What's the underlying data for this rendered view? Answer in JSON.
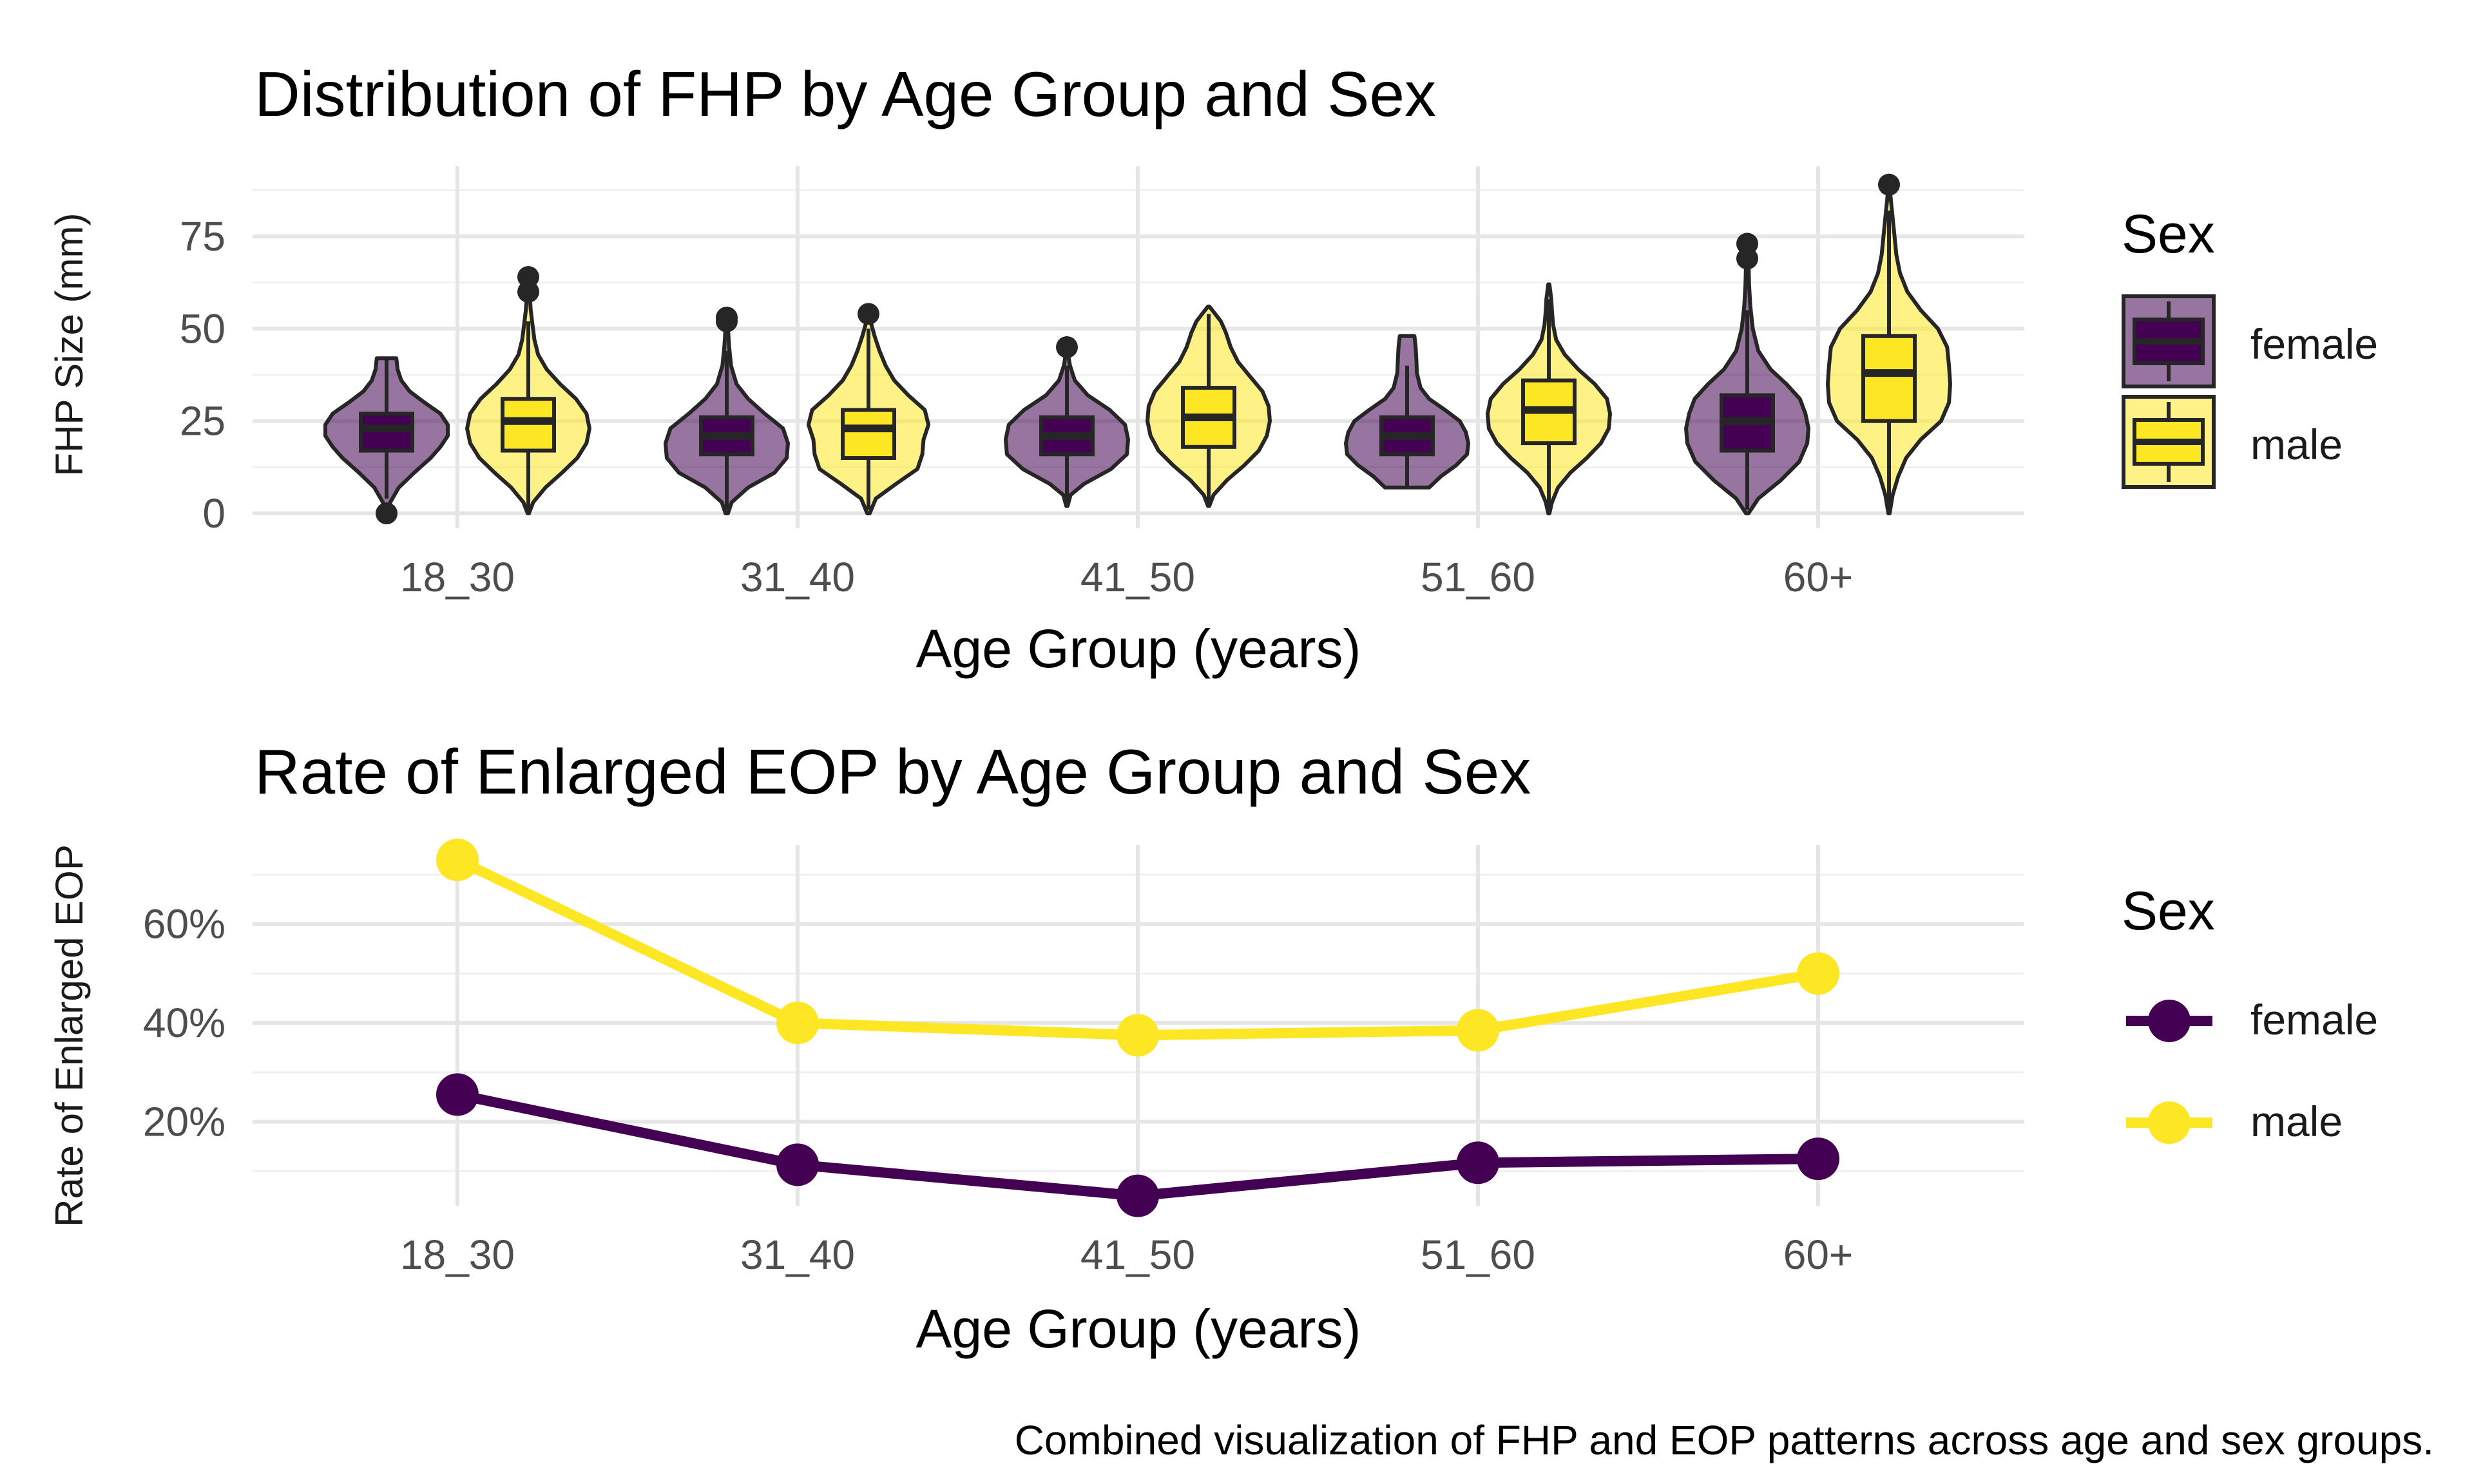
{
  "chart_data": [
    {
      "type": "violin",
      "title": "Distribution of FHP by Age Group and Sex",
      "xlabel": "Age Group (years)",
      "ylabel": "FHP Size (mm)",
      "categories": [
        "18_30",
        "31_40",
        "41_50",
        "51_60",
        "60+"
      ],
      "ylim": [
        -4,
        94
      ],
      "y_ticks": [
        0,
        25,
        50,
        75
      ],
      "y_tick_labels": [
        "0",
        "25",
        "50",
        "75"
      ],
      "grid": true,
      "legend": {
        "title": "Sex",
        "position": "right",
        "entries": [
          "female",
          "male"
        ]
      },
      "series": [
        {
          "name": "female",
          "fill": "#440154",
          "box_fill": "#440154",
          "violin_opacity": 0.55,
          "groups": [
            {
              "category": "18_30",
              "min": 0,
              "max": 42,
              "q1": 17,
              "median": 23,
              "q3": 27,
              "whisker_low": 4,
              "whisker_high": 42,
              "outliers": [
                0
              ],
              "profile": [
                [
                  0,
                  0.01
                ],
                [
                  3,
                  0.06
                ],
                [
                  7,
                  0.2
                ],
                [
                  11,
                  0.45
                ],
                [
                  15,
                  0.72
                ],
                [
                  18,
                  0.88
                ],
                [
                  21,
                  1.0
                ],
                [
                  24,
                  1.0
                ],
                [
                  27,
                  0.88
                ],
                [
                  30,
                  0.62
                ],
                [
                  33,
                  0.38
                ],
                [
                  36,
                  0.24
                ],
                [
                  39,
                  0.18
                ],
                [
                  42,
                  0.16
                ]
              ]
            },
            {
              "category": "31_40",
              "min": 0,
              "max": 53,
              "q1": 16,
              "median": 21,
              "q3": 26,
              "whisker_low": 1,
              "whisker_high": 44,
              "outliers": [
                52,
                53
              ],
              "profile": [
                [
                  0,
                  0.02
                ],
                [
                  3,
                  0.08
                ],
                [
                  7,
                  0.35
                ],
                [
                  11,
                  0.78
                ],
                [
                  15,
                  0.98
                ],
                [
                  19,
                  1.0
                ],
                [
                  23,
                  0.92
                ],
                [
                  27,
                  0.62
                ],
                [
                  31,
                  0.35
                ],
                [
                  35,
                  0.16
                ],
                [
                  40,
                  0.07
                ],
                [
                  45,
                  0.04
                ],
                [
                  50,
                  0.02
                ],
                [
                  53,
                  0.01
                ]
              ]
            },
            {
              "category": "41_50",
              "min": 2,
              "max": 45,
              "q1": 16,
              "median": 21,
              "q3": 26,
              "whisker_low": 3,
              "whisker_high": 40,
              "outliers": [
                45
              ],
              "profile": [
                [
                  2,
                  0.01
                ],
                [
                  5,
                  0.06
                ],
                [
                  8,
                  0.28
                ],
                [
                  12,
                  0.72
                ],
                [
                  16,
                  0.98
                ],
                [
                  20,
                  1.0
                ],
                [
                  24,
                  0.95
                ],
                [
                  28,
                  0.7
                ],
                [
                  32,
                  0.34
                ],
                [
                  36,
                  0.13
                ],
                [
                  40,
                  0.05
                ],
                [
                  43,
                  0.02
                ],
                [
                  45,
                  0.01
                ]
              ]
            },
            {
              "category": "51_60",
              "min": 7,
              "max": 48,
              "q1": 16,
              "median": 21,
              "q3": 26,
              "whisker_low": 7,
              "whisker_high": 40,
              "outliers": [],
              "profile": [
                [
                  7,
                  0.36
                ],
                [
                  10,
                  0.55
                ],
                [
                  13,
                  0.8
                ],
                [
                  16,
                  0.98
                ],
                [
                  19,
                  1.0
                ],
                [
                  22,
                  0.96
                ],
                [
                  25,
                  0.86
                ],
                [
                  28,
                  0.62
                ],
                [
                  31,
                  0.36
                ],
                [
                  34,
                  0.22
                ],
                [
                  38,
                  0.16
                ],
                [
                  42,
                  0.15
                ],
                [
                  45,
                  0.14
                ],
                [
                  48,
                  0.12
                ]
              ]
            },
            {
              "category": "60+",
              "min": 0,
              "max": 73,
              "q1": 17,
              "median": 25,
              "q3": 32,
              "whisker_low": 1,
              "whisker_high": 55,
              "outliers": [
                69,
                73
              ],
              "profile": [
                [
                  0,
                  0.02
                ],
                [
                  4,
                  0.18
                ],
                [
                  9,
                  0.55
                ],
                [
                  14,
                  0.85
                ],
                [
                  19,
                  0.98
                ],
                [
                  23,
                  1.0
                ],
                [
                  27,
                  0.95
                ],
                [
                  31,
                  0.86
                ],
                [
                  35,
                  0.64
                ],
                [
                  39,
                  0.38
                ],
                [
                  44,
                  0.18
                ],
                [
                  50,
                  0.09
                ],
                [
                  56,
                  0.05
                ],
                [
                  62,
                  0.03
                ],
                [
                  68,
                  0.02
                ],
                [
                  73,
                  0.01
                ]
              ]
            }
          ]
        },
        {
          "name": "male",
          "fill": "#fde725",
          "box_fill": "#fde725",
          "violin_opacity": 0.55,
          "groups": [
            {
              "category": "18_30",
              "min": 0,
              "max": 64,
              "q1": 17,
              "median": 25,
              "q3": 31,
              "whisker_low": 1,
              "whisker_high": 52,
              "outliers": [
                60,
                64
              ],
              "profile": [
                [
                  0,
                  0.01
                ],
                [
                  3,
                  0.08
                ],
                [
                  7,
                  0.28
                ],
                [
                  11,
                  0.55
                ],
                [
                  15,
                  0.8
                ],
                [
                  19,
                  0.95
                ],
                [
                  23,
                  1.0
                ],
                [
                  27,
                  0.95
                ],
                [
                  31,
                  0.78
                ],
                [
                  35,
                  0.52
                ],
                [
                  39,
                  0.3
                ],
                [
                  43,
                  0.16
                ],
                [
                  47,
                  0.1
                ],
                [
                  51,
                  0.07
                ],
                [
                  55,
                  0.04
                ],
                [
                  60,
                  0.02
                ],
                [
                  64,
                  0.01
                ]
              ]
            },
            {
              "category": "31_40",
              "min": 0,
              "max": 54,
              "q1": 15,
              "median": 23,
              "q3": 28,
              "whisker_low": 1,
              "whisker_high": 50,
              "outliers": [
                54
              ],
              "profile": [
                [
                  0,
                  0.02
                ],
                [
                  4,
                  0.12
                ],
                [
                  8,
                  0.45
                ],
                [
                  12,
                  0.8
                ],
                [
                  16,
                  0.88
                ],
                [
                  20,
                  0.9
                ],
                [
                  24,
                  0.98
                ],
                [
                  28,
                  0.92
                ],
                [
                  32,
                  0.65
                ],
                [
                  36,
                  0.42
                ],
                [
                  40,
                  0.28
                ],
                [
                  44,
                  0.18
                ],
                [
                  48,
                  0.1
                ],
                [
                  51,
                  0.05
                ],
                [
                  54,
                  0.01
                ]
              ]
            },
            {
              "category": "41_50",
              "min": 2,
              "max": 56,
              "q1": 18,
              "median": 26,
              "q3": 34,
              "whisker_low": 3,
              "whisker_high": 54,
              "outliers": [],
              "profile": [
                [
                  2,
                  0.01
                ],
                [
                  5,
                  0.08
                ],
                [
                  9,
                  0.3
                ],
                [
                  13,
                  0.58
                ],
                [
                  17,
                  0.82
                ],
                [
                  21,
                  0.95
                ],
                [
                  25,
                  1.0
                ],
                [
                  29,
                  0.98
                ],
                [
                  33,
                  0.88
                ],
                [
                  37,
                  0.68
                ],
                [
                  41,
                  0.48
                ],
                [
                  45,
                  0.36
                ],
                [
                  49,
                  0.28
                ],
                [
                  52,
                  0.2
                ],
                [
                  55,
                  0.06
                ],
                [
                  56,
                  0.01
                ]
              ]
            },
            {
              "category": "51_60",
              "min": 0,
              "max": 62,
              "q1": 19,
              "median": 28,
              "q3": 36,
              "whisker_low": 1,
              "whisker_high": 58,
              "outliers": [],
              "profile": [
                [
                  0,
                  0.01
                ],
                [
                  3,
                  0.05
                ],
                [
                  7,
                  0.15
                ],
                [
                  11,
                  0.35
                ],
                [
                  15,
                  0.62
                ],
                [
                  19,
                  0.85
                ],
                [
                  23,
                  0.98
                ],
                [
                  27,
                  1.0
                ],
                [
                  31,
                  0.95
                ],
                [
                  35,
                  0.75
                ],
                [
                  39,
                  0.48
                ],
                [
                  43,
                  0.26
                ],
                [
                  47,
                  0.12
                ],
                [
                  51,
                  0.07
                ],
                [
                  55,
                  0.05
                ],
                [
                  58,
                  0.04
                ],
                [
                  62,
                  0.01
                ]
              ]
            },
            {
              "category": "60+",
              "min": 0,
              "max": 89,
              "q1": 25,
              "median": 38,
              "q3": 48,
              "whisker_low": 1,
              "whisker_high": 82,
              "outliers": [
                89
              ],
              "profile": [
                [
                  0,
                  0.01
                ],
                [
                  5,
                  0.06
                ],
                [
                  10,
                  0.15
                ],
                [
                  15,
                  0.28
                ],
                [
                  20,
                  0.52
                ],
                [
                  25,
                  0.85
                ],
                [
                  30,
                  0.98
                ],
                [
                  35,
                  1.0
                ],
                [
                  40,
                  0.98
                ],
                [
                  45,
                  0.95
                ],
                [
                  50,
                  0.8
                ],
                [
                  55,
                  0.52
                ],
                [
                  60,
                  0.3
                ],
                [
                  65,
                  0.18
                ],
                [
                  70,
                  0.12
                ],
                [
                  75,
                  0.09
                ],
                [
                  80,
                  0.06
                ],
                [
                  85,
                  0.03
                ],
                [
                  89,
                  0.01
                ]
              ]
            }
          ]
        }
      ]
    },
    {
      "type": "line",
      "title": "Rate of Enlarged EOP by Age Group and Sex",
      "xlabel": "Age Group (years)",
      "ylabel": "Rate of Enlarged EOP",
      "categories": [
        "18_30",
        "31_40",
        "41_50",
        "51_60",
        "60+"
      ],
      "ylim": [
        0.03,
        0.76
      ],
      "y_ticks": [
        0.2,
        0.4,
        0.6
      ],
      "y_tick_labels": [
        "20%",
        "40%",
        "60%"
      ],
      "grid": true,
      "legend": {
        "title": "Sex",
        "position": "right",
        "entries": [
          "female",
          "male"
        ]
      },
      "series": [
        {
          "name": "female",
          "color": "#440154",
          "values": [
            0.255,
            0.113,
            0.05,
            0.117,
            0.125
          ]
        },
        {
          "name": "male",
          "color": "#fde725",
          "values": [
            0.73,
            0.4,
            0.375,
            0.385,
            0.5
          ]
        }
      ]
    }
  ],
  "caption": "Combined visualization of FHP and EOP patterns across age and sex groups."
}
